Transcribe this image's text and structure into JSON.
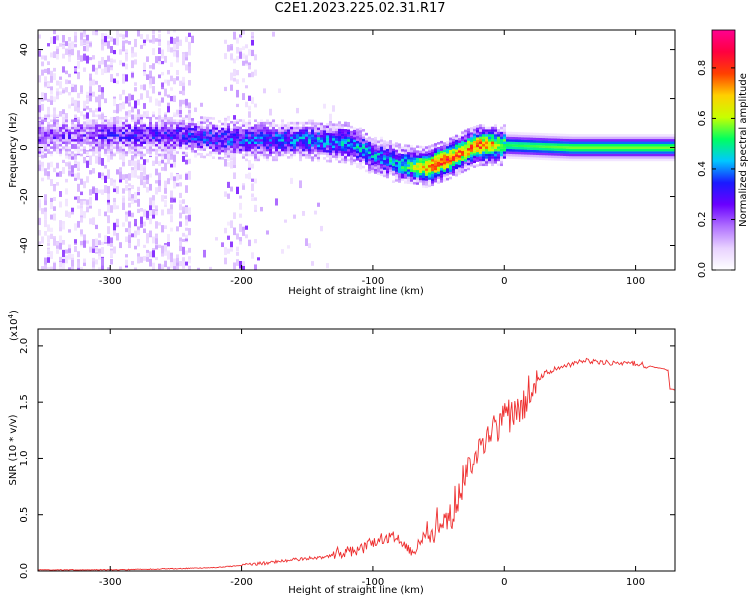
{
  "title": "C2E1.2023.225.02.31.R17",
  "chart_data": [
    {
      "type": "heatmap",
      "xlabel": "Height of straight line (km)",
      "ylabel": "Frequency (Hz)",
      "xlim": [
        -355,
        130
      ],
      "ylim": [
        -50,
        48
      ],
      "xticks": [
        -300,
        -200,
        -100,
        0,
        100
      ],
      "yticks": [
        -40,
        -20,
        0,
        20,
        40
      ],
      "grid": false,
      "colorbar": {
        "label": "Normalized spectral amplitude",
        "range": [
          0.0,
          0.95
        ],
        "ticks": [
          "0.0",
          "0.2",
          "0.4",
          "0.6",
          "0.8"
        ],
        "tick_values": [
          0.0,
          0.2,
          0.4,
          0.6,
          0.8
        ],
        "colors": [
          "#ffffff",
          "#e8d2ff",
          "#b070ff",
          "#6a00ff",
          "#1a1aff",
          "#00c8ff",
          "#00ff60",
          "#c8ff00",
          "#ffd000",
          "#ff4000",
          "#ff0040",
          "#ff0090"
        ]
      },
      "ridge": {
        "x": [
          -340,
          -300,
          -250,
          -200,
          -150,
          -120,
          -100,
          -80,
          -60,
          -50,
          -40,
          -30,
          -20,
          -10,
          0,
          50,
          100,
          130
        ],
        "frequency": [
          5,
          5,
          5,
          3,
          3,
          2,
          -3,
          -7,
          -8,
          -6,
          -4,
          -1,
          1,
          1,
          1,
          0,
          0,
          0
        ],
        "amplitude": [
          0.2,
          0.25,
          0.3,
          0.35,
          0.4,
          0.45,
          0.4,
          0.45,
          0.75,
          0.85,
          0.8,
          0.75,
          0.8,
          0.75,
          0.55,
          0.6,
          0.6,
          0.6
        ]
      }
    },
    {
      "type": "line",
      "xlabel": "Height of straight line (km)",
      "ylabel": "SNR (10 * v/v)",
      "y_multiplier": "(x10",
      "y_multiplier_exp": "4",
      "y_multiplier_close": ")",
      "xlim": [
        -355,
        130
      ],
      "ylim": [
        0,
        2.15
      ],
      "xticks": [
        -300,
        -200,
        -100,
        0,
        100
      ],
      "yticks": [
        0.0,
        0.5,
        1.0,
        1.5,
        2.0
      ],
      "ytick_labels": [
        "0.0",
        "0.5",
        "1.0",
        "1.5",
        "2.0"
      ],
      "grid": false,
      "color": "#ee3030",
      "series": [
        {
          "x": [
            -355,
            -300,
            -250,
            -220,
            -200,
            -180,
            -160,
            -140,
            -120,
            -110,
            -100,
            -95,
            -90,
            -85,
            -80,
            -75,
            -70,
            -60,
            -55,
            -50,
            -45,
            -40,
            -35,
            -30,
            -25,
            -20,
            -15,
            -10,
            -5,
            0,
            5,
            10,
            15,
            20,
            30,
            40,
            50,
            60,
            70,
            80,
            90,
            100,
            110,
            120,
            125,
            126,
            130
          ],
          "values": [
            0.01,
            0.01,
            0.02,
            0.03,
            0.05,
            0.07,
            0.1,
            0.12,
            0.16,
            0.2,
            0.24,
            0.28,
            0.3,
            0.32,
            0.3,
            0.22,
            0.18,
            0.3,
            0.35,
            0.4,
            0.42,
            0.5,
            0.65,
            0.85,
            1.0,
            1.1,
            1.15,
            1.25,
            1.3,
            1.3,
            1.38,
            1.45,
            1.5,
            1.6,
            1.75,
            1.8,
            1.83,
            1.87,
            1.86,
            1.85,
            1.84,
            1.84,
            1.82,
            1.8,
            1.78,
            1.62,
            1.61
          ]
        }
      ]
    }
  ]
}
